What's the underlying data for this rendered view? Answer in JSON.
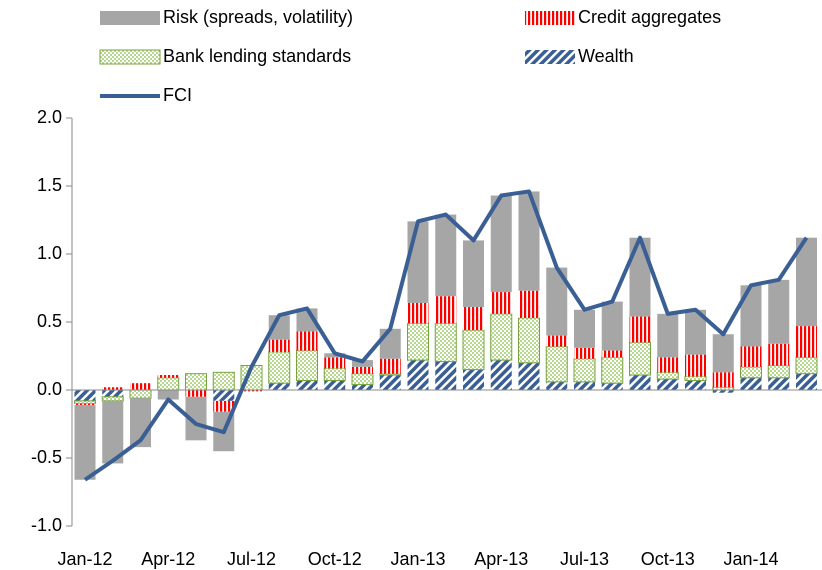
{
  "chart_data": {
    "type": "bar",
    "stacked": true,
    "categories": [
      "Jan-12",
      null,
      null,
      "Apr-12",
      null,
      null,
      "Jul-12",
      null,
      null,
      "Oct-12",
      null,
      null,
      "Jan-13",
      null,
      null,
      "Apr-13",
      null,
      null,
      "Jul-13",
      null,
      null,
      "Oct-13",
      null,
      null,
      "Jan-14",
      null,
      null
    ],
    "series": [
      {
        "name": "Wealth",
        "type": "bar",
        "color": "#3a5f95",
        "values": [
          -0.08,
          -0.05,
          0.0,
          0.0,
          0.0,
          -0.08,
          0.0,
          0.05,
          0.07,
          0.07,
          0.04,
          0.11,
          0.22,
          0.21,
          0.15,
          0.22,
          0.2,
          0.06,
          0.06,
          0.05,
          0.11,
          0.08,
          0.07,
          -0.02,
          0.09,
          0.09,
          0.12
        ]
      },
      {
        "name": "Bank lending standards",
        "type": "bar",
        "color": "#77a33c",
        "values": [
          -0.02,
          -0.03,
          -0.06,
          0.09,
          0.12,
          0.13,
          0.18,
          0.23,
          0.22,
          0.09,
          0.08,
          0.01,
          0.27,
          0.28,
          0.29,
          0.34,
          0.33,
          0.26,
          0.17,
          0.19,
          0.24,
          0.05,
          0.03,
          0.02,
          0.08,
          0.09,
          0.12
        ]
      },
      {
        "name": "Credit aggregates",
        "type": "bar",
        "color": "#ff0000",
        "values": [
          -0.01,
          0.02,
          0.05,
          0.02,
          -0.05,
          -0.08,
          -0.01,
          0.09,
          0.14,
          0.08,
          0.05,
          0.11,
          0.15,
          0.2,
          0.17,
          0.16,
          0.2,
          0.08,
          0.08,
          0.05,
          0.19,
          0.11,
          0.16,
          0.11,
          0.15,
          0.16,
          0.23
        ]
      },
      {
        "name": "Risk (spreads, volatility)",
        "type": "bar",
        "color": "#a6a6a6",
        "values": [
          -0.55,
          -0.46,
          -0.36,
          -0.07,
          -0.32,
          -0.29,
          0.0,
          0.18,
          0.17,
          0.03,
          0.05,
          0.22,
          0.6,
          0.6,
          0.49,
          0.71,
          0.73,
          0.5,
          0.28,
          0.36,
          0.58,
          0.32,
          0.33,
          0.28,
          0.45,
          0.47,
          0.65
        ]
      },
      {
        "name": "FCI",
        "type": "line",
        "color": "#3a5f95",
        "values": [
          -0.66,
          -0.52,
          -0.37,
          -0.07,
          -0.25,
          -0.31,
          0.17,
          0.55,
          0.6,
          0.27,
          0.21,
          0.45,
          1.24,
          1.29,
          1.1,
          1.43,
          1.46,
          0.9,
          0.59,
          0.65,
          1.12,
          0.56,
          0.59,
          0.41,
          0.77,
          0.81,
          1.12
        ]
      }
    ],
    "ylim": [
      -1,
      2
    ],
    "yticks": [
      {
        "value": -1,
        "label": "-1.0"
      },
      -0.5,
      {
        "value": 0,
        "label": "0.0"
      },
      0.5,
      {
        "value": 1,
        "label": "1.0"
      },
      1.5,
      {
        "value": 2,
        "label": "2.0"
      }
    ],
    "grid": false
  }
}
